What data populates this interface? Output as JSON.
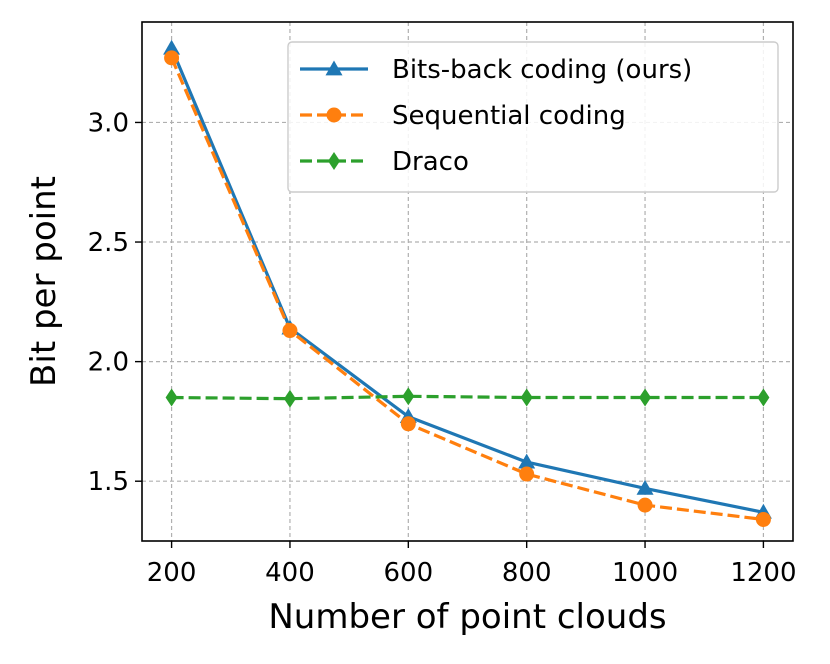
{
  "chart_data": {
    "type": "line",
    "title": "",
    "xlabel": "Number of point clouds",
    "ylabel": "Bit per point",
    "xlim": [
      150,
      1250
    ],
    "ylim": [
      1.25,
      3.42
    ],
    "xticks": [
      200,
      400,
      600,
      800,
      1000,
      1200
    ],
    "yticks": [
      1.5,
      2.0,
      2.5,
      3.0
    ],
    "ytick_labels": [
      "1.5",
      "2.0",
      "2.5",
      "3.0"
    ],
    "grid": true,
    "legend_position": "top-right",
    "x": [
      200,
      400,
      600,
      800,
      1000,
      1200
    ],
    "series": [
      {
        "name": "Bits-back coding (ours)",
        "values": [
          3.31,
          2.14,
          1.77,
          1.58,
          1.47,
          1.37
        ],
        "color": "#1f77b4",
        "line_style": "solid",
        "marker": "triangle"
      },
      {
        "name": "Sequential coding",
        "values": [
          3.27,
          2.13,
          1.74,
          1.53,
          1.4,
          1.34
        ],
        "color": "#ff7f0e",
        "line_style": "dashed",
        "marker": "circle"
      },
      {
        "name": "Draco",
        "values": [
          1.85,
          1.845,
          1.855,
          1.85,
          1.85,
          1.85
        ],
        "color": "#2ca02c",
        "line_style": "dashed",
        "marker": "diamond"
      }
    ]
  }
}
